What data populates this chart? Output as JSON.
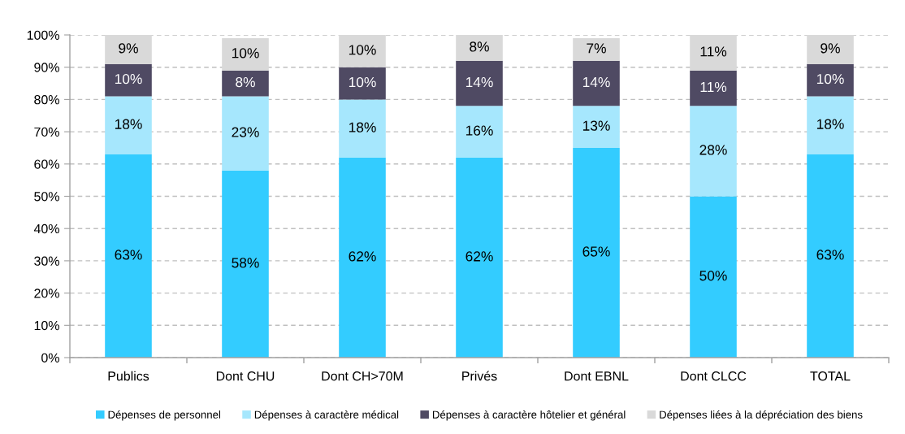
{
  "chart_data": {
    "type": "bar",
    "stacked": true,
    "categories": [
      "Publics",
      "Dont CHU",
      "Dont CH>70M",
      "Privés",
      "Dont EBNL",
      "Dont CLCC",
      "TOTAL"
    ],
    "series": [
      {
        "name": "Dépenses de personnel",
        "color": "#33ccff",
        "values": [
          63,
          58,
          62,
          62,
          65,
          50,
          63
        ],
        "value_labels": [
          "63%",
          "58%",
          "62%",
          "62%",
          "65%",
          "50%",
          "63%"
        ]
      },
      {
        "name": "Dépenses à caractère médical",
        "color": "#a6e7fd",
        "values": [
          18,
          23,
          18,
          16,
          13,
          28,
          18
        ],
        "value_labels": [
          "18%",
          "23%",
          "18%",
          "16%",
          "13%",
          "28%",
          "18%"
        ]
      },
      {
        "name": "Dépenses à caractère hôtelier et général",
        "color": "#4f4a63",
        "values": [
          10,
          8,
          10,
          14,
          14,
          11,
          10
        ],
        "value_labels": [
          "10%",
          "8%",
          "10%",
          "14%",
          "14%",
          "11%",
          "10%"
        ]
      },
      {
        "name": "Dépenses liées à la dépréciation des biens",
        "color": "#d9d9d9",
        "values": [
          9,
          10,
          10,
          8,
          7,
          11,
          9
        ],
        "value_labels": [
          "9%",
          "10%",
          "10%",
          "8%",
          "7%",
          "11%",
          "9%"
        ]
      }
    ],
    "ylim": [
      0,
      100
    ],
    "yticks": [
      {
        "value": 0,
        "label": "0%"
      },
      {
        "value": 10,
        "label": "10%"
      },
      {
        "value": 20,
        "label": "20%"
      },
      {
        "value": 30,
        "label": "30%"
      },
      {
        "value": 40,
        "label": "40%"
      },
      {
        "value": 50,
        "label": "50%"
      },
      {
        "value": 60,
        "label": "60%"
      },
      {
        "value": 70,
        "label": "70%"
      },
      {
        "value": 80,
        "label": "80%"
      },
      {
        "value": 90,
        "label": "90%"
      },
      {
        "value": 100,
        "label": "100%"
      }
    ],
    "grid": "y",
    "legend": "bottom"
  }
}
